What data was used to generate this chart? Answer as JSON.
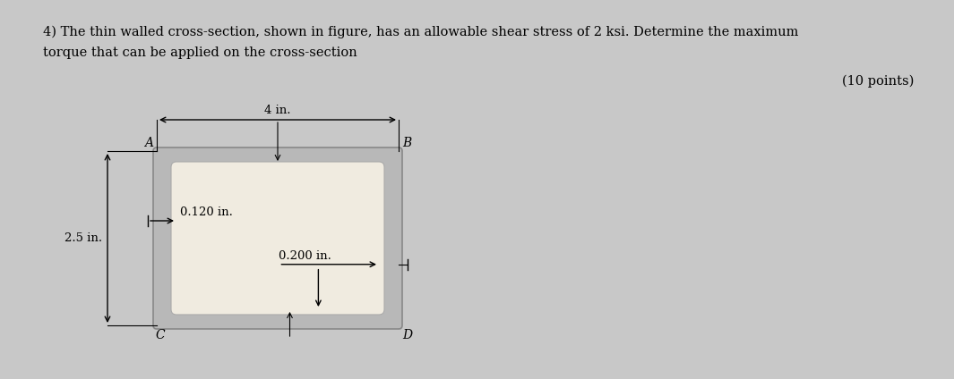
{
  "bg_color": "#c8c8c8",
  "title_line1": "4) The thin walled cross-section, shown in figure, has an allowable shear stress of 2 ksi. Determine the maximum",
  "title_line2": "torque that can be applied on the cross-section",
  "points_text": "(10 points)",
  "title_fontsize": 10.5,
  "points_fontsize": 10.5,
  "outer_facecolor": "#b0b0b0",
  "inner_facecolor": "#f0ebe0",
  "label_4in": "4 in.",
  "label_25in": "2.5 in.",
  "label_0120": "0.120 in.",
  "label_0200": "0.200 in.",
  "dim_fontsize": 9.5
}
